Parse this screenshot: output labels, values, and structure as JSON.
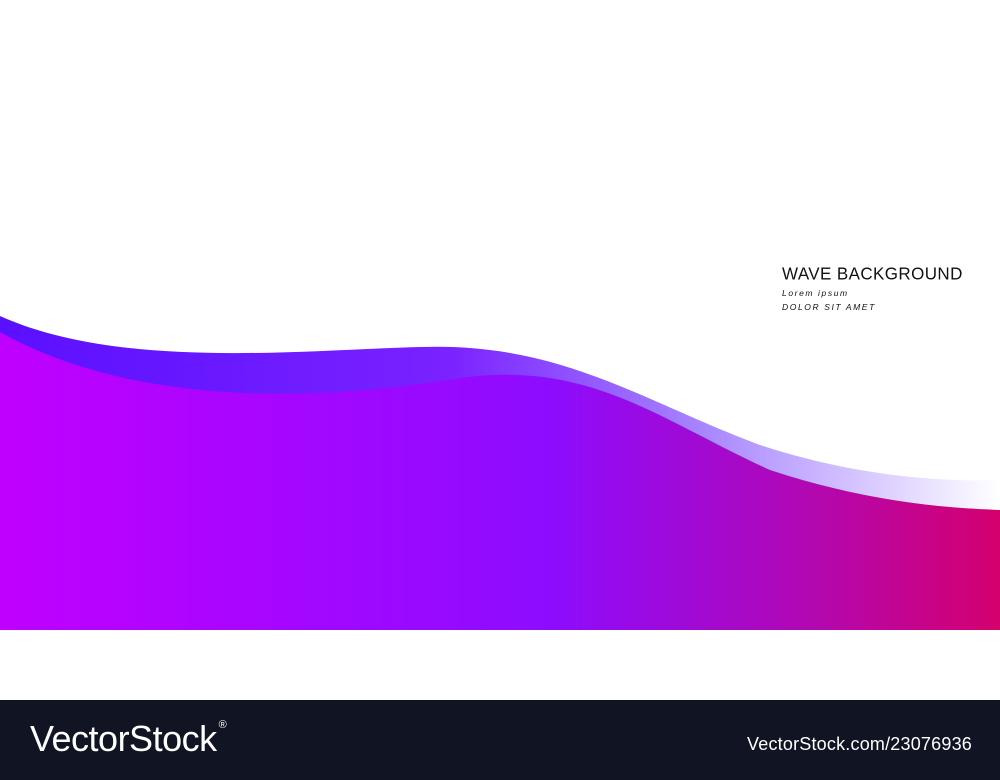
{
  "poster": {
    "title": "WAVE BACKGROUND",
    "subtitle_1": "Lorem ipsum",
    "subtitle_2": "DOLOR SIT AMET"
  },
  "footer": {
    "brand": "VectorStock",
    "registered_mark": "®",
    "stock_id": "VectorStock.com/23076936"
  },
  "colors": {
    "footer_bg": "#111422",
    "wave_left": "#c000ff",
    "wave_mid": "#8d0cff",
    "wave_right": "#d4006e",
    "band_left": "#5a10ff",
    "band_right": "#ffffff"
  }
}
